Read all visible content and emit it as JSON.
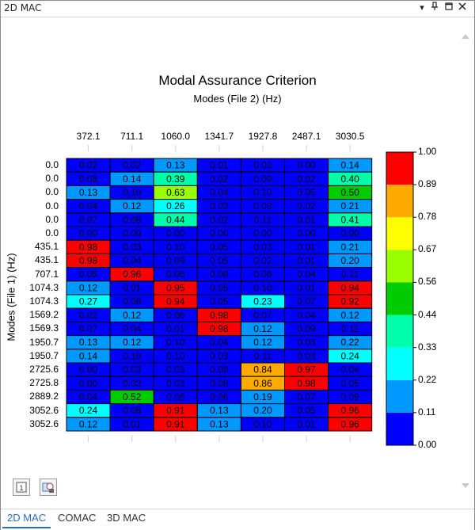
{
  "window": {
    "title": "2D MAC"
  },
  "tabs": [
    {
      "label": "2D MAC",
      "active": true
    },
    {
      "label": "COMAC",
      "active": false
    },
    {
      "label": "3D MAC",
      "active": false
    }
  ],
  "chart_data": {
    "type": "heatmap",
    "title": "Modal Assurance Criterion",
    "subtitle": "Modes (File 2) (Hz)",
    "ylabel": "Modes (File 1) (Hz)",
    "columns": [
      "372.1",
      "711.1",
      "1060.0",
      "1341.7",
      "1927.8",
      "2487.1",
      "3030.5"
    ],
    "rows": [
      "0.0",
      "0.0",
      "0.0",
      "0.0",
      "0.0",
      "0.0",
      "435.1",
      "435.1",
      "707.1",
      "1074.3",
      "1074.3",
      "1569.2",
      "1569.3",
      "1950.7",
      "1950.7",
      "2725.6",
      "2725.8",
      "2889.2",
      "3052.6",
      "3052.6"
    ],
    "values": [
      [
        0.02,
        0.02,
        0.13,
        0.01,
        0.03,
        0.0,
        0.14
      ],
      [
        0.08,
        0.14,
        0.39,
        0.02,
        0.09,
        0.02,
        0.4
      ],
      [
        0.13,
        0.1,
        0.63,
        0.04,
        0.1,
        0.05,
        0.5
      ],
      [
        0.04,
        0.12,
        0.26,
        0.03,
        0.09,
        0.02,
        0.21
      ],
      [
        0.07,
        0.08,
        0.44,
        0.02,
        0.11,
        0.01,
        0.41
      ],
      [
        0.0,
        0.0,
        0.0,
        0.0,
        0.0,
        0.0,
        0.0
      ],
      [
        0.98,
        0.03,
        0.1,
        0.05,
        0.03,
        0.01,
        0.21
      ],
      [
        0.98,
        0.04,
        0.09,
        0.05,
        0.02,
        0.01,
        0.2
      ],
      [
        0.05,
        0.96,
        0.06,
        0.08,
        0.08,
        0.04,
        0.11
      ],
      [
        0.12,
        0.01,
        0.95,
        0.05,
        0.1,
        0.01,
        0.94
      ],
      [
        0.27,
        0.08,
        0.94,
        0.05,
        0.23,
        0.07,
        0.92
      ],
      [
        0.02,
        0.12,
        0.06,
        0.98,
        0.07,
        0.04,
        0.12
      ],
      [
        0.07,
        0.04,
        0.01,
        0.98,
        0.12,
        0.09,
        0.11
      ],
      [
        0.13,
        0.12,
        0.1,
        0.04,
        0.12,
        0.03,
        0.22
      ],
      [
        0.14,
        0.1,
        0.1,
        0.03,
        0.11,
        0.03,
        0.24
      ],
      [
        0.0,
        0.03,
        0.03,
        0.08,
        0.84,
        0.97,
        0.04
      ],
      [
        0.0,
        0.03,
        0.03,
        0.08,
        0.86,
        0.98,
        0.05
      ],
      [
        0.04,
        0.52,
        0.06,
        0.06,
        0.19,
        0.07,
        0.09
      ],
      [
        0.24,
        0.08,
        0.91,
        0.13,
        0.2,
        0.05,
        0.96
      ],
      [
        0.12,
        0.01,
        0.91,
        0.13,
        0.1,
        0.01,
        0.96
      ]
    ],
    "colorbar": {
      "labels": [
        "1.00",
        "0.89",
        "0.78",
        "0.67",
        "0.56",
        "0.44",
        "0.33",
        "0.22",
        "0.11",
        "0.00"
      ],
      "colors": [
        "#0000ff",
        "#0099ff",
        "#00ffff",
        "#00ffaa",
        "#00cc00",
        "#99ff00",
        "#ffff00",
        "#ffaa00",
        "#ff0000"
      ]
    }
  }
}
